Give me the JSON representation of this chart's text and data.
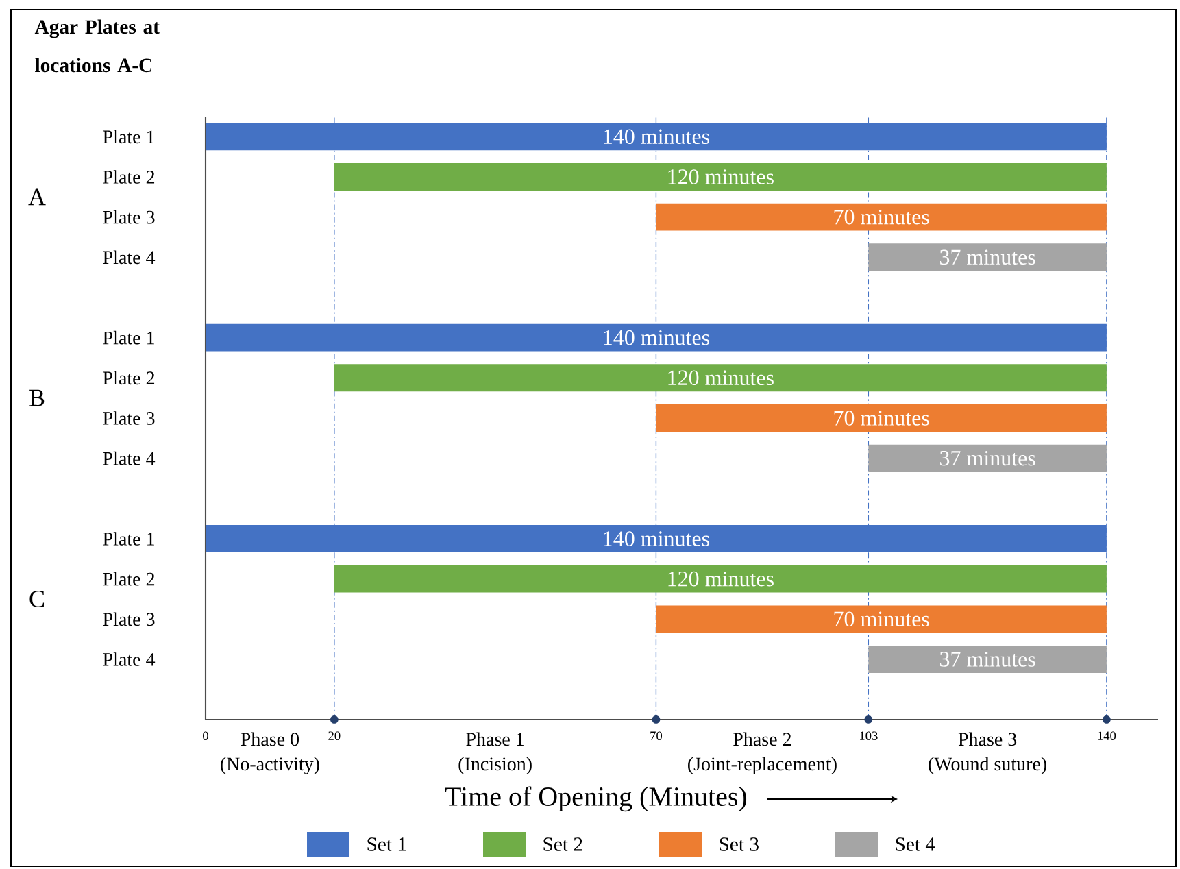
{
  "chart_data": {
    "type": "bar",
    "orientation": "horizontal",
    "title": "Agar Plates at locations A-C",
    "xlabel": "Time of Opening (Minutes)",
    "categories": [
      "Plate 1",
      "Plate 2",
      "Plate 3",
      "Plate 4",
      null,
      "Plate 1",
      "Plate 2",
      "Plate 3",
      "Plate 4",
      null,
      "Plate 1",
      "Plate 2",
      "Plate 3",
      "Plate 4"
    ],
    "series": [
      {
        "name": "Set 1",
        "color": "#4472c4",
        "values": [
          140,
          null,
          null,
          null,
          null,
          140,
          null,
          null,
          null,
          null,
          140,
          null,
          null,
          null
        ],
        "base": [
          0,
          null,
          null,
          null,
          null,
          0,
          null,
          null,
          null,
          null,
          0,
          null,
          null,
          null
        ],
        "value_labels": [
          "140 minutes",
          null,
          null,
          null,
          null,
          "140 minutes",
          null,
          null,
          null,
          null,
          "140 minutes",
          null,
          null,
          null
        ]
      },
      {
        "name": "Set 2",
        "color": "#70ad47",
        "values": [
          null,
          120,
          null,
          null,
          null,
          null,
          120,
          null,
          null,
          null,
          null,
          120,
          null,
          null
        ],
        "base": [
          null,
          20,
          null,
          null,
          null,
          null,
          20,
          null,
          null,
          null,
          null,
          20,
          null,
          null
        ],
        "value_labels": [
          null,
          "120 minutes",
          null,
          null,
          null,
          null,
          "120 minutes",
          null,
          null,
          null,
          null,
          "120 minutes",
          null,
          null
        ]
      },
      {
        "name": "Set 3",
        "color": "#ed7d31",
        "values": [
          null,
          null,
          70,
          null,
          null,
          null,
          null,
          70,
          null,
          null,
          null,
          null,
          70,
          null
        ],
        "base": [
          null,
          null,
          70,
          null,
          null,
          null,
          null,
          70,
          null,
          null,
          null,
          null,
          70,
          null
        ],
        "value_labels": [
          null,
          null,
          "70 minutes",
          null,
          null,
          null,
          null,
          "70 minutes",
          null,
          null,
          null,
          null,
          "70 minutes",
          null
        ]
      },
      {
        "name": "Set 4",
        "color": "#a5a5a5",
        "values": [
          null,
          null,
          null,
          37,
          null,
          null,
          null,
          null,
          37,
          null,
          null,
          null,
          null,
          37
        ],
        "base": [
          null,
          null,
          null,
          103,
          null,
          null,
          null,
          null,
          103,
          null,
          null,
          null,
          null,
          103
        ],
        "value_labels": [
          null,
          null,
          null,
          "37 minutes",
          null,
          null,
          null,
          null,
          "37 minutes",
          null,
          null,
          null,
          null,
          "37 minutes"
        ]
      }
    ],
    "xlim": [
      0,
      148
    ],
    "xticks": [
      0,
      20,
      70,
      103,
      140
    ],
    "ref_lines": [
      {
        "axis": "x",
        "value": 20,
        "color": "#4472c4",
        "line_style": "dashed"
      },
      {
        "axis": "x",
        "value": 70,
        "color": "#4472c4",
        "line_style": "dashed"
      },
      {
        "axis": "x",
        "value": 103,
        "color": "#4472c4",
        "line_style": "dashed"
      },
      {
        "axis": "x",
        "value": 140,
        "color": "#4472c4",
        "line_style": "dashed"
      }
    ],
    "annotations": [
      "A",
      "B",
      "C",
      "Phase 0",
      "(No-activity)",
      "Phase 1",
      "(Incision)",
      "Phase 2",
      "(Joint-replacement)",
      "Phase 3",
      "(Wound suture)"
    ],
    "legend": "bottom"
  }
}
